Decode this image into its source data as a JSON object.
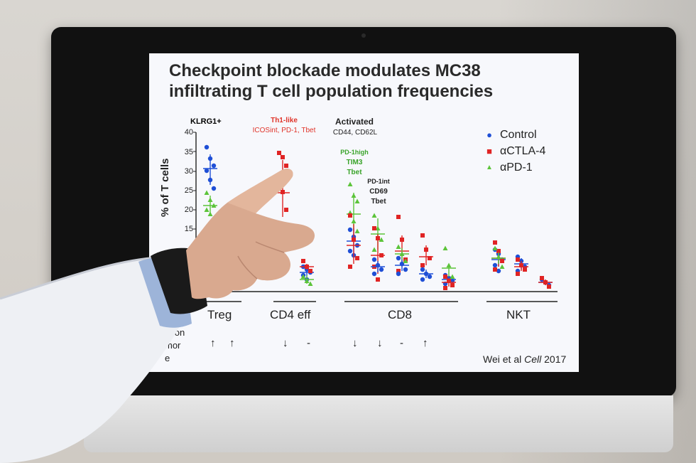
{
  "slide": {
    "title_line1": "Checkpoint blockade modulates MC38",
    "title_line2": "infiltrating T cell population frequencies",
    "y_axis_label": "% of T cells",
    "y_ticks": [
      "40",
      "35",
      "30",
      "25",
      "20",
      "15"
    ],
    "captions": {
      "klrg1": "KLRG1+",
      "th1_like": "Th1-like",
      "th1_markers": "ICOSint, PD-1, Tbet",
      "activated": "Activated",
      "activated_markers": "CD44, CD62L",
      "pd1_high": "PD-1high",
      "tim3": "TIM3",
      "tbet_green": "Tbet",
      "pd1_int": "PD-1int",
      "cd69": "CD69",
      "tbet_black": "Tbet"
    },
    "legend": [
      {
        "label": "Control",
        "marker": "●",
        "color": "#1f4fd6"
      },
      {
        "label": "αCTLA-4",
        "marker": "■",
        "color": "#e02424"
      },
      {
        "label": "αPD-1",
        "marker": "▲",
        "color": "#5cc43a"
      }
    ],
    "groups": [
      "Treg",
      "CD4 eff",
      "CD8",
      "NKT"
    ],
    "effect_label_line1": "ct on",
    "effect_label_line2": "mor",
    "effect_label_line3": "e",
    "effects": [
      "↑",
      "↑",
      "↓",
      "-",
      "↓",
      "↓",
      "-",
      "↑"
    ],
    "citation_prefix": "Wei et al ",
    "citation_journal": "Cell",
    "citation_year": " 2017"
  },
  "colors": {
    "control": "#1f4fd6",
    "ctla4": "#e02424",
    "pd1": "#5cc43a",
    "th1_caption": "#e0342a",
    "pd1high_caption": "#3aa32a"
  }
}
